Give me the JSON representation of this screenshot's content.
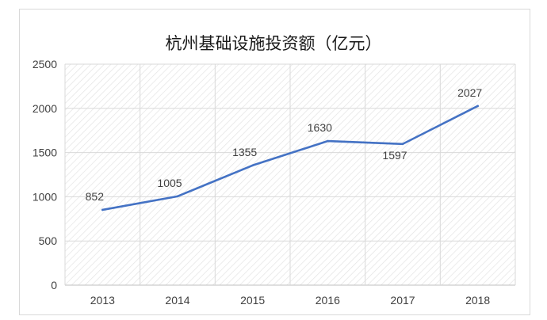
{
  "chart_data": {
    "type": "line",
    "title": "杭州基础设施投资额（亿元）",
    "xlabel": "",
    "ylabel": "",
    "categories": [
      "2013",
      "2014",
      "2015",
      "2016",
      "2017",
      "2018"
    ],
    "series": [
      {
        "values": [
          852,
          1005,
          1355,
          1630,
          1597,
          2027
        ],
        "color": "#4472c4"
      }
    ],
    "ylim": [
      0,
      2500
    ],
    "yticks": [
      0,
      500,
      1000,
      1500,
      2000,
      2500
    ],
    "grid": true,
    "plot_background": "hatched",
    "legend": "none",
    "data_labels": [
      "852",
      "1005",
      "1355",
      "1630",
      "1597",
      "2027"
    ]
  }
}
